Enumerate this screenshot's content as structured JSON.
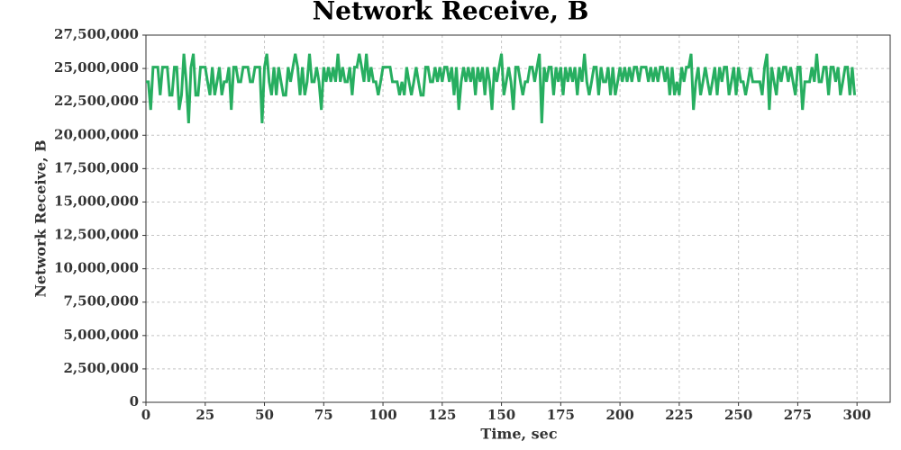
{
  "chart_data": {
    "type": "line",
    "title": "Network Receive, B",
    "x_label": "Time, sec",
    "y_label": "Network Receive, B",
    "grid": true,
    "legend": false,
    "xlim": [
      0,
      314
    ],
    "xticks": [
      0,
      25,
      50,
      75,
      100,
      125,
      150,
      175,
      200,
      225,
      250,
      275,
      300
    ],
    "ylim": [
      0,
      27500000
    ],
    "yticks": [
      0,
      {
        "value": 2500000,
        "label": "2,500,000"
      },
      {
        "value": 5000000,
        "label": "5,000,000"
      },
      {
        "value": 7500000,
        "label": "7,500,000"
      },
      {
        "value": 10000000,
        "label": "10,000,000"
      },
      {
        "value": 12500000,
        "label": "12,500,000"
      },
      {
        "value": 15000000,
        "label": "15,000,000"
      },
      {
        "value": 17500000,
        "label": "17,500,000"
      },
      {
        "value": 20000000,
        "label": "20,000,000"
      },
      {
        "value": 22500000,
        "label": "22,500,000"
      },
      {
        "value": 25000000,
        "label": "25,000,000"
      },
      {
        "value": 27500000,
        "label": "27,500,000"
      }
    ],
    "x": [
      0,
      1,
      2,
      3,
      4,
      5,
      6,
      7,
      8,
      9,
      10,
      11,
      12,
      13,
      14,
      15,
      16,
      17,
      18,
      19,
      20,
      21,
      22,
      23,
      24,
      25,
      26,
      27,
      28,
      29,
      30,
      31,
      32,
      33,
      34,
      35,
      36,
      37,
      38,
      39,
      40,
      41,
      42,
      43,
      44,
      45,
      46,
      47,
      48,
      49,
      50,
      51,
      52,
      53,
      54,
      55,
      56,
      57,
      58,
      59,
      60,
      61,
      62,
      63,
      64,
      65,
      66,
      67,
      68,
      69,
      70,
      71,
      72,
      73,
      74,
      75,
      76,
      77,
      78,
      79,
      80,
      81,
      82,
      83,
      84,
      85,
      86,
      87,
      88,
      89,
      90,
      91,
      92,
      93,
      94,
      95,
      96,
      97,
      98,
      99,
      100,
      101,
      102,
      103,
      104,
      105,
      106,
      107,
      108,
      109,
      110,
      111,
      112,
      113,
      114,
      115,
      116,
      117,
      118,
      119,
      120,
      121,
      122,
      123,
      124,
      125,
      126,
      127,
      128,
      129,
      130,
      131,
      132,
      133,
      134,
      135,
      136,
      137,
      138,
      139,
      140,
      141,
      142,
      143,
      144,
      145,
      146,
      147,
      148,
      149,
      150,
      151,
      152,
      153,
      154,
      155,
      156,
      157,
      158,
      159,
      160,
      161,
      162,
      163,
      164,
      165,
      166,
      167,
      168,
      169,
      170,
      171,
      172,
      173,
      174,
      175,
      176,
      177,
      178,
      179,
      180,
      181,
      182,
      183,
      184,
      185,
      186,
      187,
      188,
      189,
      190,
      191,
      192,
      193,
      194,
      195,
      196,
      197,
      198,
      199,
      200,
      201,
      202,
      203,
      204,
      205,
      206,
      207,
      208,
      209,
      210,
      211,
      212,
      213,
      214,
      215,
      216,
      217,
      218,
      219,
      220,
      221,
      222,
      223,
      224,
      225,
      226,
      227,
      228,
      229,
      230,
      231,
      232,
      233,
      234,
      235,
      236,
      237,
      238,
      239,
      240,
      241,
      242,
      243,
      244,
      245,
      246,
      247,
      248,
      249,
      250,
      251,
      252,
      253,
      254,
      255,
      256,
      257,
      258,
      259,
      260,
      261,
      262,
      263,
      264,
      265,
      266,
      267,
      268,
      269,
      270,
      271,
      272,
      273,
      274,
      275,
      276,
      277,
      278,
      279,
      280,
      281,
      282,
      283,
      284,
      285,
      286,
      287,
      288,
      289,
      290,
      291,
      292,
      293,
      294,
      295,
      296,
      297,
      298,
      299
    ],
    "series": [
      {
        "color": "#27ae60",
        "values": [
          24000000,
          24000000,
          21900000,
          25100000,
          25100000,
          25100000,
          23000000,
          25100000,
          25100000,
          25100000,
          23000000,
          23000000,
          25100000,
          25100000,
          21900000,
          23000000,
          26100000,
          24000000,
          20900000,
          25100000,
          26100000,
          23000000,
          23000000,
          25100000,
          25100000,
          25100000,
          24000000,
          23000000,
          25100000,
          23000000,
          24000000,
          25100000,
          23000000,
          24000000,
          24000000,
          25100000,
          21900000,
          25100000,
          25100000,
          24000000,
          24000000,
          25100000,
          25100000,
          25100000,
          24000000,
          24000000,
          25100000,
          25100000,
          25100000,
          20900000,
          25100000,
          26100000,
          24000000,
          23000000,
          25100000,
          23000000,
          25100000,
          24000000,
          23000000,
          23000000,
          25100000,
          24000000,
          25100000,
          26100000,
          25100000,
          23000000,
          25100000,
          23000000,
          24000000,
          26100000,
          24000000,
          24000000,
          25100000,
          24000000,
          21900000,
          25100000,
          24000000,
          25100000,
          24000000,
          25100000,
          24000000,
          26100000,
          24000000,
          25100000,
          24000000,
          24000000,
          25100000,
          23000000,
          25100000,
          25100000,
          26100000,
          25100000,
          24000000,
          26100000,
          24000000,
          25100000,
          24000000,
          24000000,
          23000000,
          24000000,
          25100000,
          25100000,
          25100000,
          25100000,
          24000000,
          24000000,
          24000000,
          23000000,
          24000000,
          23000000,
          25100000,
          24000000,
          23000000,
          24000000,
          25100000,
          24000000,
          23000000,
          23000000,
          25100000,
          25100000,
          24000000,
          24000000,
          25100000,
          24000000,
          25100000,
          24000000,
          25100000,
          25100000,
          24000000,
          25100000,
          23000000,
          25100000,
          21900000,
          24000000,
          25100000,
          24000000,
          25100000,
          24000000,
          25100000,
          23000000,
          25100000,
          24000000,
          25100000,
          23000000,
          25100000,
          24000000,
          21900000,
          25100000,
          24000000,
          25100000,
          26100000,
          23000000,
          24000000,
          25100000,
          24000000,
          21900000,
          25100000,
          25100000,
          24000000,
          23000000,
          24000000,
          24000000,
          25100000,
          25100000,
          24000000,
          25100000,
          26100000,
          20900000,
          25100000,
          24000000,
          25100000,
          25100000,
          23000000,
          25100000,
          24000000,
          25100000,
          23000000,
          25100000,
          24000000,
          25100000,
          24000000,
          25100000,
          23000000,
          25100000,
          24000000,
          26100000,
          24000000,
          23000000,
          24000000,
          25100000,
          25100000,
          23000000,
          25100000,
          24000000,
          24000000,
          25100000,
          23000000,
          25100000,
          23000000,
          24000000,
          25100000,
          24000000,
          25100000,
          24000000,
          25100000,
          24000000,
          25100000,
          25100000,
          24000000,
          25100000,
          25100000,
          25100000,
          24000000,
          25100000,
          24000000,
          25100000,
          24000000,
          25100000,
          25100000,
          24000000,
          25100000,
          23000000,
          25100000,
          23000000,
          24000000,
          23000000,
          25100000,
          24000000,
          25100000,
          25100000,
          26100000,
          21900000,
          24000000,
          25100000,
          23000000,
          24000000,
          25100000,
          24000000,
          23000000,
          24000000,
          25100000,
          23000000,
          25100000,
          24000000,
          25100000,
          25100000,
          23000000,
          24000000,
          25100000,
          23000000,
          25100000,
          24000000,
          24000000,
          23000000,
          24000000,
          25100000,
          24000000,
          24000000,
          24000000,
          24000000,
          23000000,
          25100000,
          26100000,
          21900000,
          25100000,
          24000000,
          23000000,
          25100000,
          24000000,
          25100000,
          25100000,
          24000000,
          25100000,
          24000000,
          23000000,
          25100000,
          25100000,
          21900000,
          24000000,
          24000000,
          24000000,
          25100000,
          24000000,
          26100000,
          24000000,
          24000000,
          25100000,
          25100000,
          23000000,
          25100000,
          25100000,
          24000000,
          25100000,
          23000000,
          24000000,
          25100000,
          25100000,
          23000000,
          25100000,
          23000000
        ]
      }
    ]
  }
}
